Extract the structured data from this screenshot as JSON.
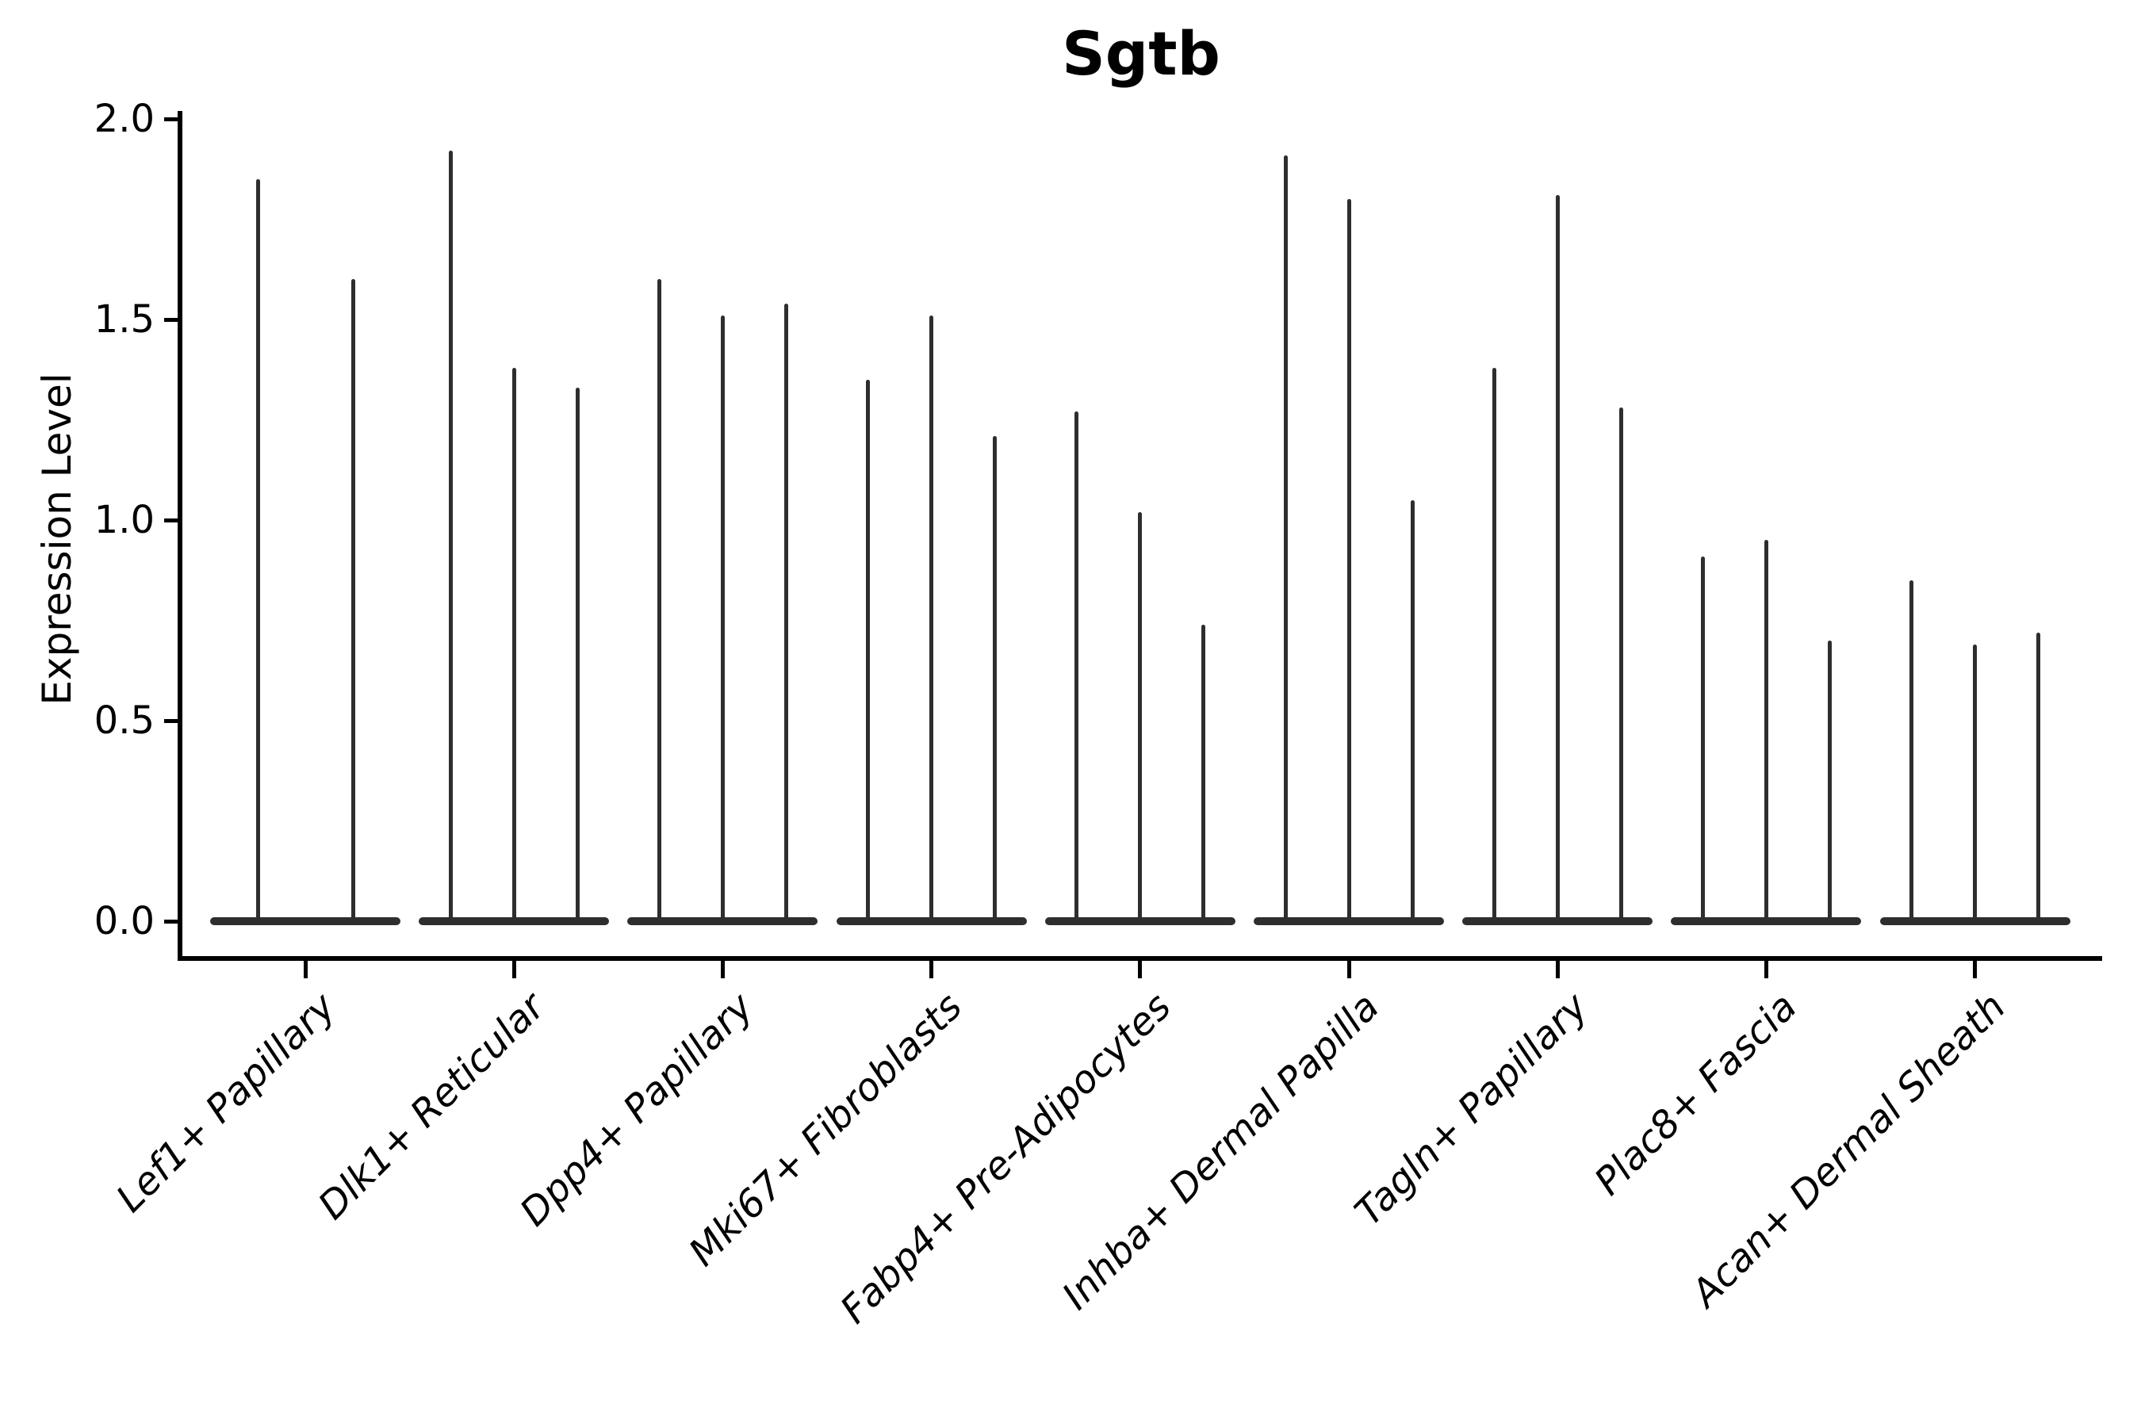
{
  "title": "Sgtb",
  "chart_data": {
    "type": "violin",
    "title": "Sgtb",
    "xlabel": "",
    "ylabel": "Expression Level",
    "ylim": [
      0.0,
      2.0
    ],
    "yticks": [
      "0.0",
      "0.5",
      "1.0",
      "1.5",
      "2.0"
    ],
    "grid": "off",
    "legend": "none",
    "description": "Violin plot of Sgtb expression; each category shows 2-3 extremely thin violins whose bodies are flattened at 0 with a narrow spike rising to the maximum expression value.",
    "groups": [
      {
        "category": "Lef1+ Papillary",
        "spike_maxima": [
          1.85,
          1.6
        ]
      },
      {
        "category": "Dlk1+ Reticular",
        "spike_maxima": [
          1.92,
          1.38,
          1.33
        ]
      },
      {
        "category": "Dpp4+ Papillary",
        "spike_maxima": [
          1.6,
          1.51,
          1.54
        ]
      },
      {
        "category": "Mki67+ Fibroblasts",
        "spike_maxima": [
          1.35,
          1.51,
          1.21
        ]
      },
      {
        "category": "Fabp4+ Pre-Adipocytes",
        "spike_maxima": [
          1.27,
          1.02,
          0.74
        ]
      },
      {
        "category": "Inhba+ Dermal Papilla",
        "spike_maxima": [
          1.91,
          1.8,
          1.05
        ]
      },
      {
        "category": "Tagln+ Papillary",
        "spike_maxima": [
          1.38,
          1.81,
          1.28
        ]
      },
      {
        "category": "Plac8+ Fascia",
        "spike_maxima": [
          0.91,
          0.95,
          0.7
        ]
      },
      {
        "category": "Acan+ Dermal Sheath",
        "spike_maxima": [
          0.85,
          0.69,
          0.72
        ]
      }
    ],
    "colors": {
      "violin": "#2e2e2e",
      "spine": "#000000",
      "text": "#000000",
      "background": "#ffffff"
    }
  }
}
